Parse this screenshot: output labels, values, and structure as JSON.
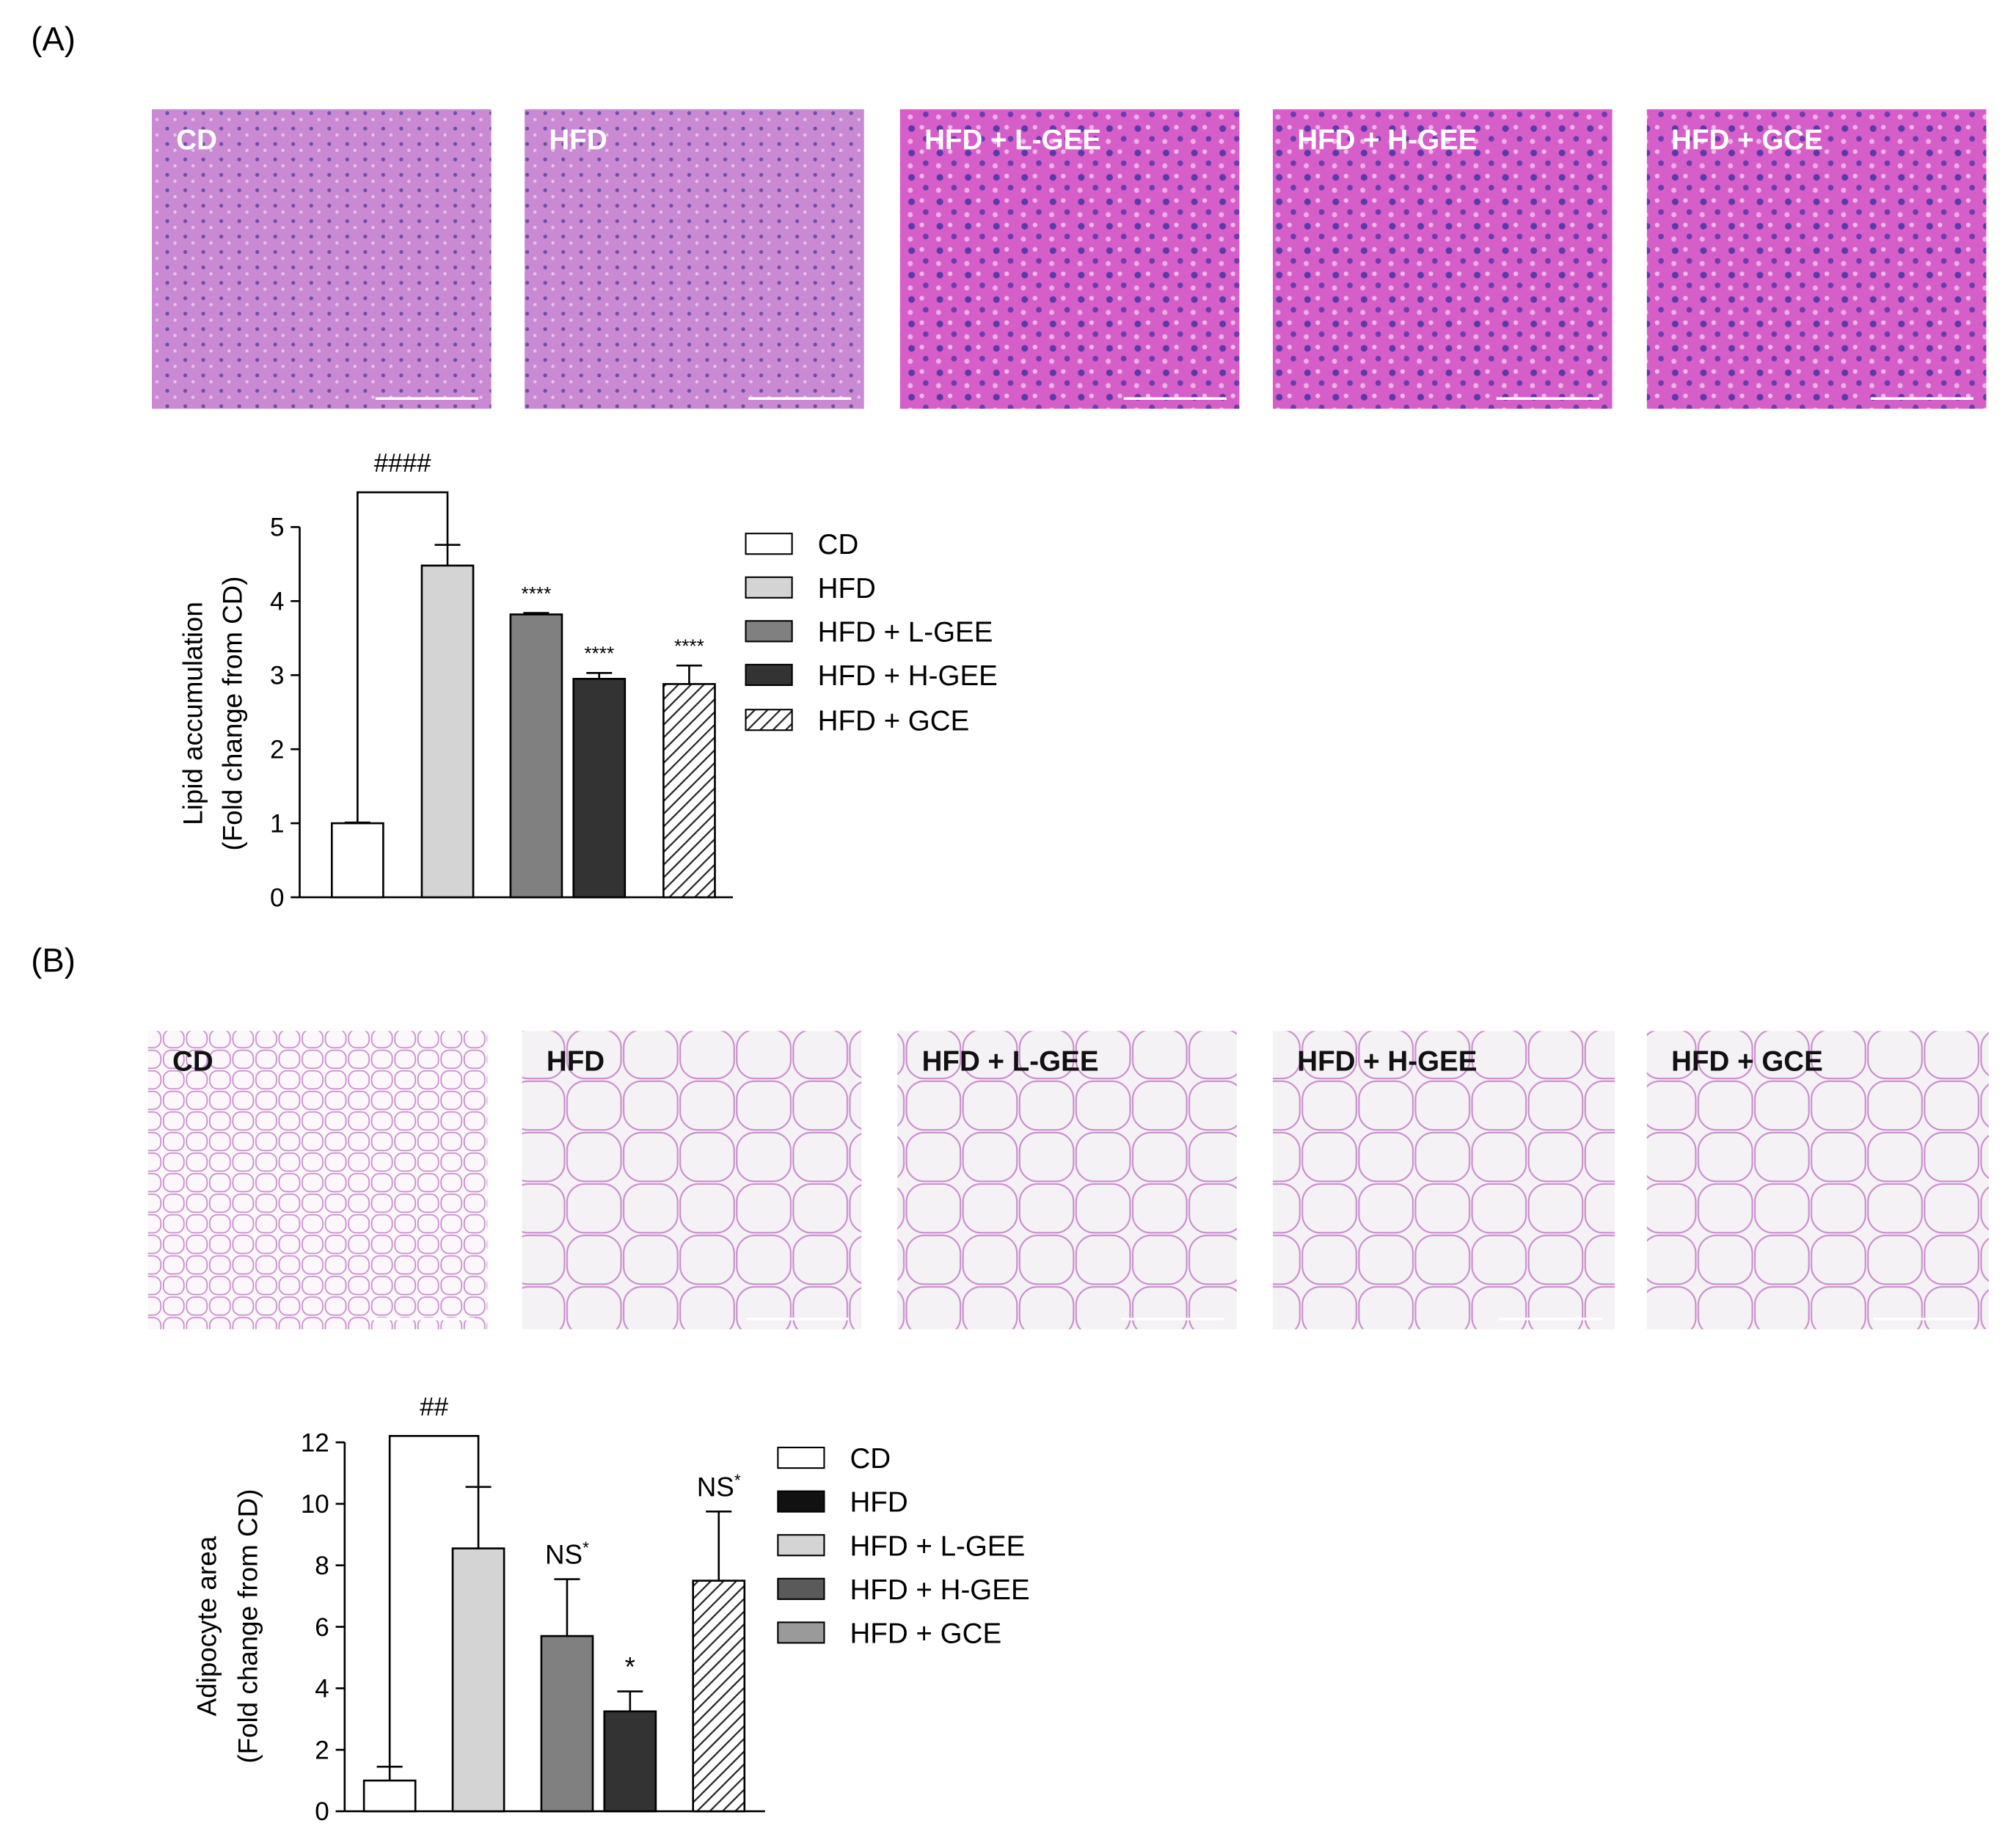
{
  "panels": [
    {
      "label": "(A)",
      "images": [
        "CD",
        "HFD",
        "HFD + L-GEE",
        "HFD + H-GEE",
        "HFD + GCE"
      ]
    },
    {
      "label": "(B)",
      "images": [
        "CD",
        "HFD",
        "HFD + L-GEE",
        "HFD + H-GEE",
        "HFD + GCE"
      ]
    }
  ],
  "chart_data": [
    {
      "type": "bar",
      "y_label": [
        "Lipid accumulation",
        "(Fold change from CD)"
      ],
      "ylim": [
        0,
        5
      ],
      "yticks": [
        0,
        1,
        2,
        3,
        4,
        5
      ],
      "bracket_label": "####",
      "series": [
        {
          "name": "CD",
          "color": "#ffffff",
          "values": [
            1.0
          ],
          "errors": [
            0.01
          ]
        },
        {
          "name": "HFD",
          "color": "#d4d4d4",
          "values": [
            4.48
          ],
          "errors": [
            0.28
          ]
        },
        {
          "name": "HFD + L-GEE",
          "color": "#808080",
          "values": [
            3.82
          ],
          "errors": [
            0.02
          ],
          "label": "****"
        },
        {
          "name": "HFD + H-GEE",
          "color": "#333333",
          "values": [
            2.95
          ],
          "errors": [
            0.08
          ],
          "label": "****"
        },
        {
          "name": "HFD + GCE",
          "color": "#ffffff",
          "hatch": true,
          "values": [
            2.88
          ],
          "errors": [
            0.25
          ],
          "label": "****"
        }
      ]
    },
    {
      "type": "bar",
      "y_label": [
        "Adipocyte area",
        "(Fold change from CD)"
      ],
      "ylim": [
        0,
        12
      ],
      "yticks": [
        0,
        2,
        4,
        6,
        8,
        10,
        12
      ],
      "bracket_label": "##",
      "series": [
        {
          "name": "CD",
          "color": "#ffffff",
          "legend_color": "#ffffff",
          "values": [
            1.0
          ],
          "errors": [
            0.45
          ]
        },
        {
          "name": "HFD",
          "color": "#d4d4d4",
          "legend_color": "#111111",
          "values": [
            8.55
          ],
          "errors": [
            2.0
          ]
        },
        {
          "name": "HFD + L-GEE",
          "color": "#808080",
          "legend_color": "#d4d4d4",
          "values": [
            5.7
          ],
          "errors": [
            1.85
          ],
          "label": "NS",
          "label_sup": "*"
        },
        {
          "name": "HFD + H-GEE",
          "color": "#333333",
          "legend_color": "#5a5a5a",
          "values": [
            3.25
          ],
          "errors": [
            0.65
          ],
          "label": "*"
        },
        {
          "name": "HFD + GCE",
          "color": "#ffffff",
          "legend_color": "#9a9a9a",
          "hatch": true,
          "values": [
            7.5
          ],
          "errors": [
            2.25
          ],
          "label": "NS",
          "label_sup": "*"
        }
      ]
    }
  ]
}
